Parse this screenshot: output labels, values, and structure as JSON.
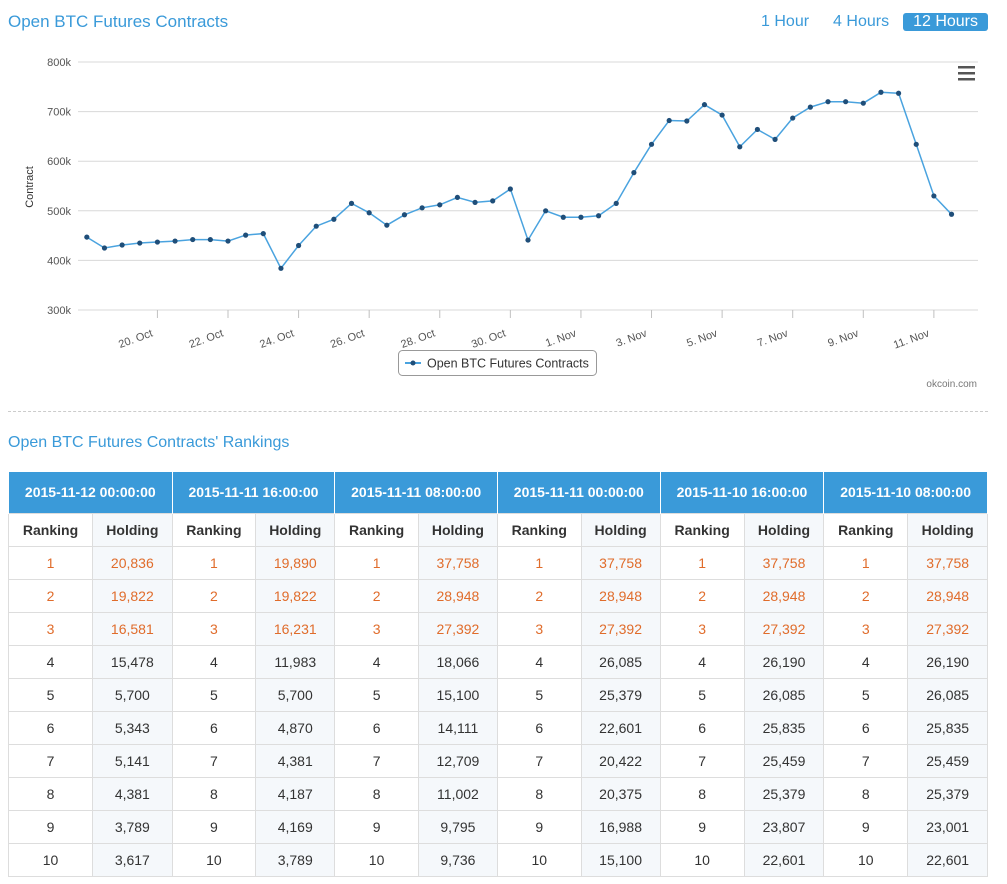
{
  "header": {
    "title": "Open BTC Futures Contracts",
    "timeframes": [
      "1 Hour",
      "4 Hours",
      "12 Hours"
    ],
    "active_timeframe": "12 Hours"
  },
  "chart_data": {
    "type": "line",
    "ylabel": "Contract",
    "ylim": [
      300000,
      800000
    ],
    "y_ticks": [
      300000,
      400000,
      500000,
      600000,
      700000,
      800000
    ],
    "y_tick_labels": [
      "300k",
      "400k",
      "500k",
      "600k",
      "700k",
      "800k"
    ],
    "x_tick_labels": [
      "20. Oct",
      "22. Oct",
      "24. Oct",
      "26. Oct",
      "28. Oct",
      "30. Oct",
      "1. Nov",
      "3. Nov",
      "5. Nov",
      "7. Nov",
      "9. Nov",
      "11. Nov"
    ],
    "x_tick_positions": [
      4,
      8,
      12,
      16,
      20,
      24,
      28,
      32,
      36,
      40,
      44,
      48
    ],
    "x_range": [
      -0.5,
      50.5
    ],
    "legend": "Open BTC Futures Contracts",
    "credit": "okcoin.com",
    "series": [
      {
        "name": "Open BTC Futures Contracts",
        "color": "#4aa3df",
        "values": [
          447000,
          425000,
          431000,
          435000,
          437000,
          439000,
          442000,
          442000,
          439000,
          451000,
          454000,
          384000,
          430000,
          469000,
          483000,
          515000,
          496000,
          471000,
          492000,
          506000,
          512000,
          527000,
          517000,
          520000,
          544000,
          441000,
          500000,
          487000,
          487000,
          490000,
          515000,
          577000,
          634000,
          682000,
          681000,
          714000,
          693000,
          629000,
          664000,
          644000,
          687000,
          709000,
          720000,
          720000,
          717000,
          739000,
          737000,
          634000,
          530000,
          493000
        ]
      }
    ]
  },
  "rankings": {
    "title": "Open BTC Futures Contracts' Rankings",
    "col_ranking": "Ranking",
    "col_holding": "Holding",
    "columns": [
      {
        "date": "2015-11-12 00:00:00",
        "holdings": [
          "20,836",
          "19,822",
          "16,581",
          "15,478",
          "5,700",
          "5,343",
          "5,141",
          "4,381",
          "3,789",
          "3,617"
        ]
      },
      {
        "date": "2015-11-11 16:00:00",
        "holdings": [
          "19,890",
          "19,822",
          "16,231",
          "11,983",
          "5,700",
          "4,870",
          "4,381",
          "4,187",
          "4,169",
          "3,789"
        ]
      },
      {
        "date": "2015-11-11 08:00:00",
        "holdings": [
          "37,758",
          "28,948",
          "27,392",
          "18,066",
          "15,100",
          "14,111",
          "12,709",
          "11,002",
          "9,795",
          "9,736"
        ]
      },
      {
        "date": "2015-11-11 00:00:00",
        "holdings": [
          "37,758",
          "28,948",
          "27,392",
          "26,085",
          "25,379",
          "22,601",
          "20,422",
          "20,375",
          "16,988",
          "15,100"
        ]
      },
      {
        "date": "2015-11-10 16:00:00",
        "holdings": [
          "37,758",
          "28,948",
          "27,392",
          "26,190",
          "26,085",
          "25,835",
          "25,459",
          "25,379",
          "23,807",
          "22,601"
        ]
      },
      {
        "date": "2015-11-10 08:00:00",
        "holdings": [
          "37,758",
          "28,948",
          "27,392",
          "26,190",
          "26,085",
          "25,835",
          "25,459",
          "25,379",
          "23,001",
          "22,601"
        ]
      }
    ],
    "ranks": [
      "1",
      "2",
      "3",
      "4",
      "5",
      "6",
      "7",
      "8",
      "9",
      "10"
    ],
    "highlight_color": "#e06c2b"
  }
}
